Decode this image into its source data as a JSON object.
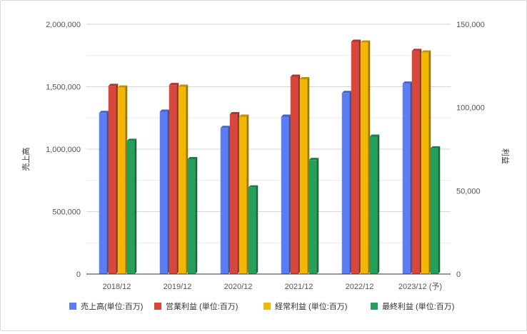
{
  "chart_data": {
    "type": "bar",
    "title": "",
    "categories": [
      "2018/12",
      "2019/12",
      "2020/12",
      "2021/12",
      "2022/12",
      "2023/12 (予)"
    ],
    "series": [
      {
        "name": "売上高(単位:百万)",
        "axis": "left",
        "color": "#5b7cf2",
        "values": [
          1290000,
          1300000,
          1170000,
          1260000,
          1450000,
          1525000
        ]
      },
      {
        "name": "営業利益 (単位:百万)",
        "axis": "right",
        "color": "#d9463b",
        "values": [
          113000,
          113500,
          96000,
          118500,
          139500,
          134000
        ]
      },
      {
        "name": "経常利益 (単位:百万)",
        "axis": "right",
        "color": "#f2b705",
        "values": [
          112000,
          112500,
          94500,
          117000,
          139000,
          133000
        ]
      },
      {
        "name": "最終利益 (単位:百万)",
        "axis": "right",
        "color": "#25a05a",
        "values": [
          80000,
          69000,
          52000,
          68500,
          82500,
          75500
        ]
      }
    ],
    "y_left": {
      "label": "売上高",
      "ylim": [
        0,
        2000000
      ],
      "ticks": [
        0,
        500000,
        1000000,
        1500000,
        2000000
      ],
      "tick_labels": [
        "0",
        "500,000",
        "1,000,000",
        "1,500,000",
        "2,000,000"
      ]
    },
    "y_right": {
      "label": "利益",
      "ylim": [
        0,
        150000
      ],
      "ticks": [
        0,
        50000,
        100000,
        150000
      ],
      "tick_labels": [
        "0",
        "50,000",
        "100,000",
        "150,000"
      ]
    },
    "grid": true,
    "legend": "bottom"
  }
}
